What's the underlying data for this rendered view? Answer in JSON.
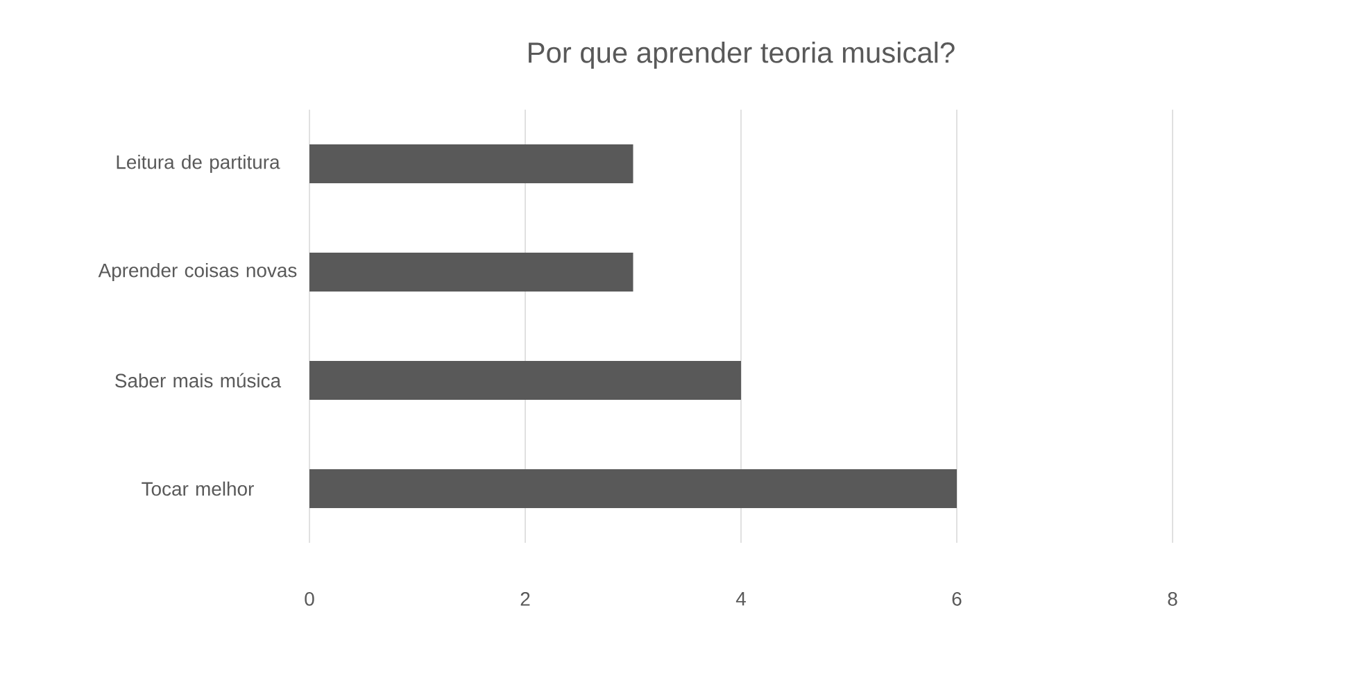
{
  "chart_data": {
    "type": "bar",
    "orientation": "horizontal",
    "title": "Por que aprender teoria musical?",
    "categories": [
      "Leitura de partitura",
      "Aprender coisas novas",
      "Saber mais música",
      "Tocar melhor"
    ],
    "values": [
      3,
      3,
      4,
      6
    ],
    "color": "#595959",
    "xlim": [
      0,
      8
    ],
    "xticks": [
      0,
      2,
      4,
      6,
      8
    ],
    "grid": "x"
  }
}
